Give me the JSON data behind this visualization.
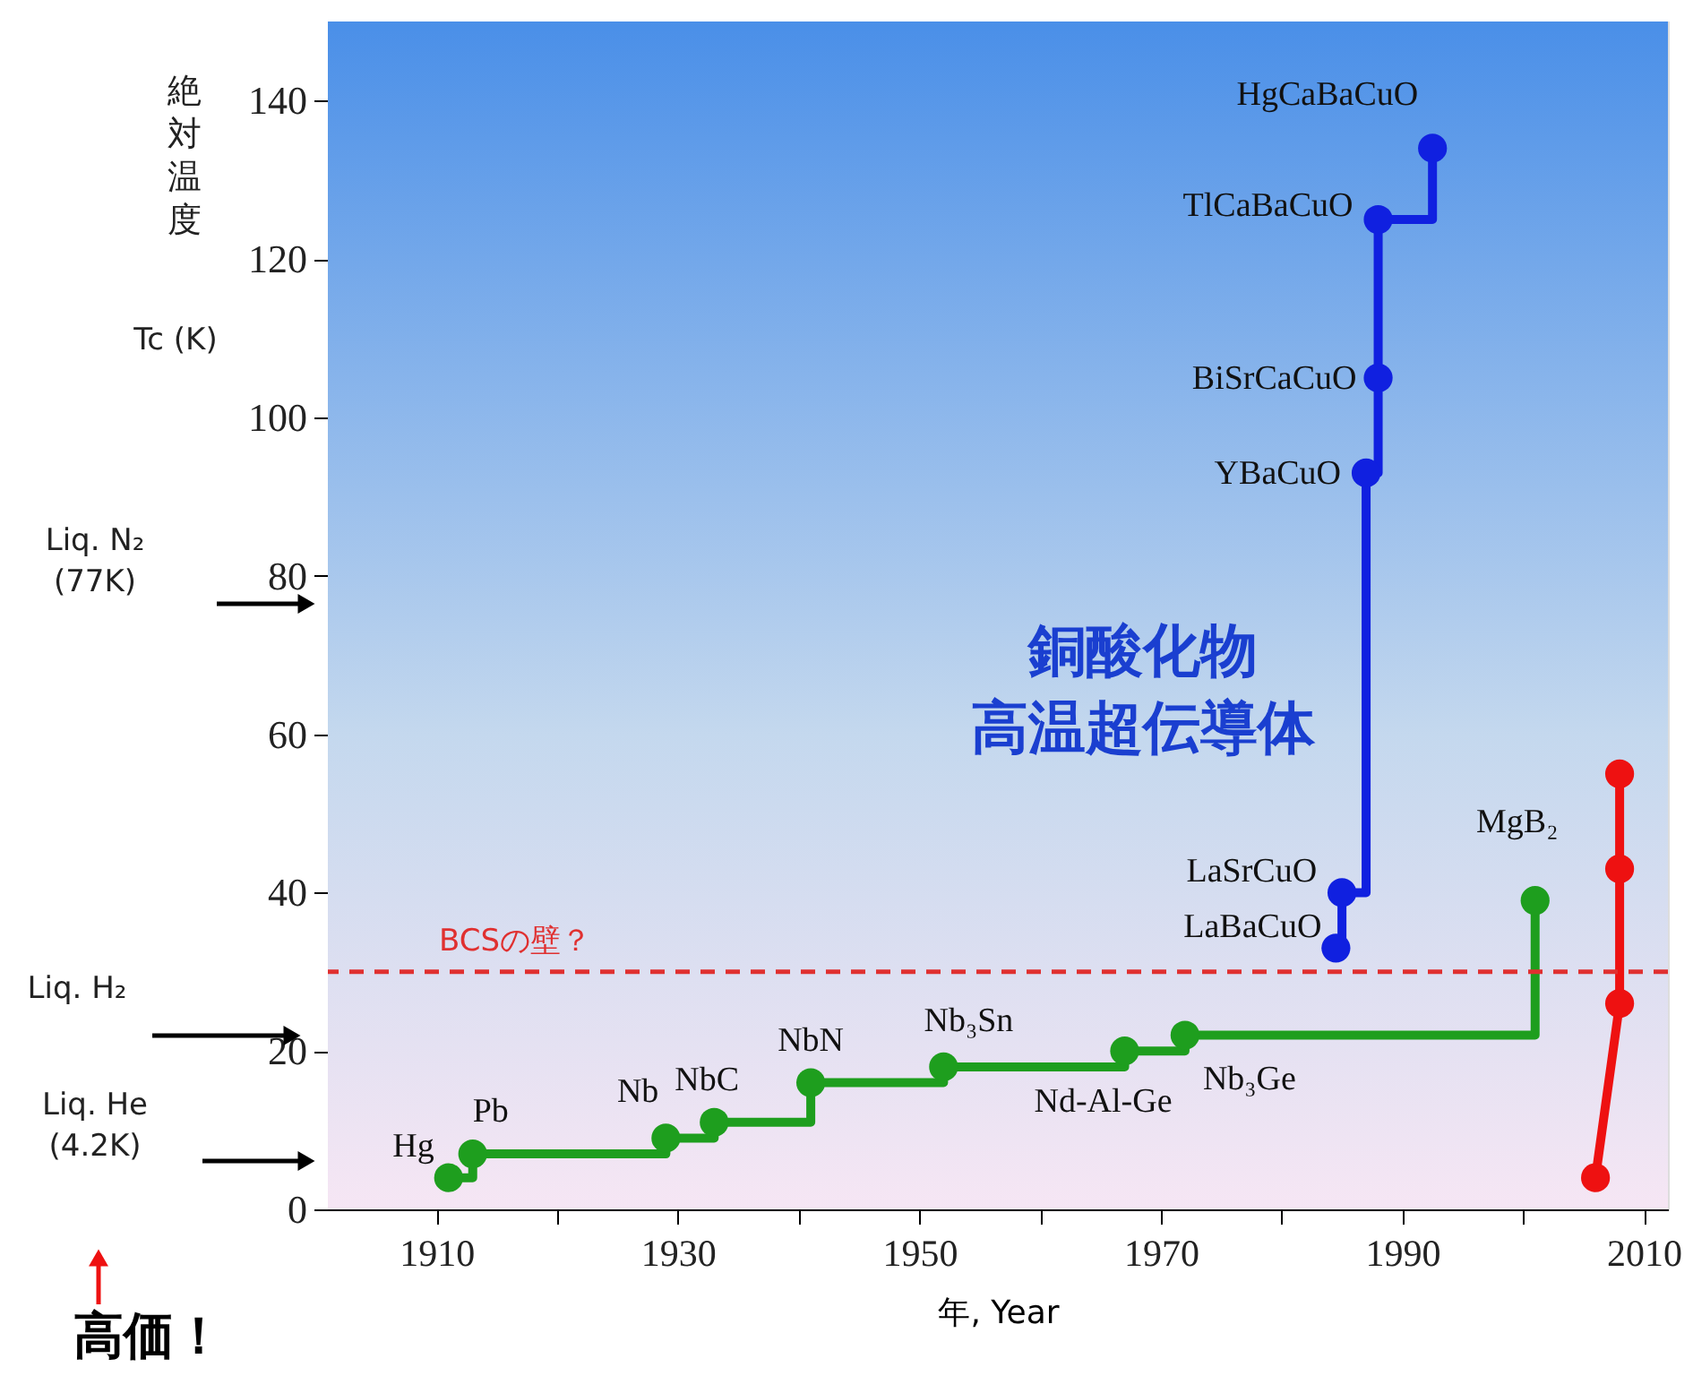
{
  "chart_data": {
    "type": "step",
    "xlabel": "年, Year",
    "ylabel": "絶対温度",
    "xlim": [
      1901,
      2012
    ],
    "ylim": [
      0,
      150
    ],
    "xticks": [
      1910,
      {
        "value": 1920,
        "label": null
      },
      1930,
      {
        "value": 1940,
        "label": null
      },
      1950,
      {
        "value": 1960,
        "label": null
      },
      1970,
      {
        "value": 1980,
        "label": null
      },
      1990,
      {
        "value": 2000,
        "label": null
      },
      2010
    ],
    "yticks": [
      0,
      20,
      40,
      60,
      80,
      100,
      120,
      140
    ],
    "marker": "circle",
    "line_style": "solid",
    "series": [
      {
        "color": "#1e9e1e",
        "x": [
          1911,
          1913,
          1929,
          1933,
          1941,
          1952,
          1967,
          1972,
          2001
        ],
        "values": [
          4,
          7,
          9,
          11,
          16,
          18,
          20,
          22,
          39
        ]
      },
      {
        "color": "#1020e0",
        "x": [
          1984.5,
          1985,
          1987,
          1988,
          1988,
          1992.5
        ],
        "values": [
          33,
          40,
          93,
          105,
          125,
          134
        ]
      },
      {
        "type": "line",
        "color": "#ee1111",
        "x": [
          2006,
          2008,
          2008,
          2008
        ],
        "values": [
          4,
          26,
          43,
          55
        ]
      }
    ],
    "ref_lines": [
      {
        "axis": "y",
        "value": 30,
        "label": "BCSの壁？",
        "color": "#e03030",
        "line_style": "dashed"
      }
    ],
    "annotations": [
      "Tc (K)",
      "Liq. N₂\n(77K)",
      "Liq. H₂",
      "Liq. He\n(4.2K)",
      "高価！",
      "銅酸化物高温超伝導体",
      {
        "text": "Hg",
        "x": 1911,
        "y": 4
      },
      {
        "text": "Pb",
        "x": 1913,
        "y": 7
      },
      {
        "text": "Nb",
        "x": 1929,
        "y": 9
      },
      {
        "text": "NbC",
        "x": 1933,
        "y": 11
      },
      {
        "text": "NbN",
        "x": 1941,
        "y": 16
      },
      {
        "text": "Nb₃Sn",
        "x": 1952,
        "y": 18
      },
      {
        "text": "Nd-Al-Ge",
        "x": 1967,
        "y": 20
      },
      {
        "text": "Nb₃Ge",
        "x": 1972,
        "y": 22
      },
      {
        "text": "MgB₂",
        "x": 2001,
        "y": 39
      },
      {
        "text": "LaBaCuO",
        "x": 1984.5,
        "y": 33
      },
      {
        "text": "LaSrCuO",
        "x": 1985,
        "y": 40
      },
      {
        "text": "YBaCuO",
        "x": 1987,
        "y": 93
      },
      {
        "text": "BiSrCaCuO",
        "x": 1988,
        "y": 105
      },
      {
        "text": "TlCaBaCuO",
        "x": 1988,
        "y": 125
      },
      {
        "text": "HgCaBaCuO",
        "x": 1992.5,
        "y": 134
      }
    ]
  }
}
